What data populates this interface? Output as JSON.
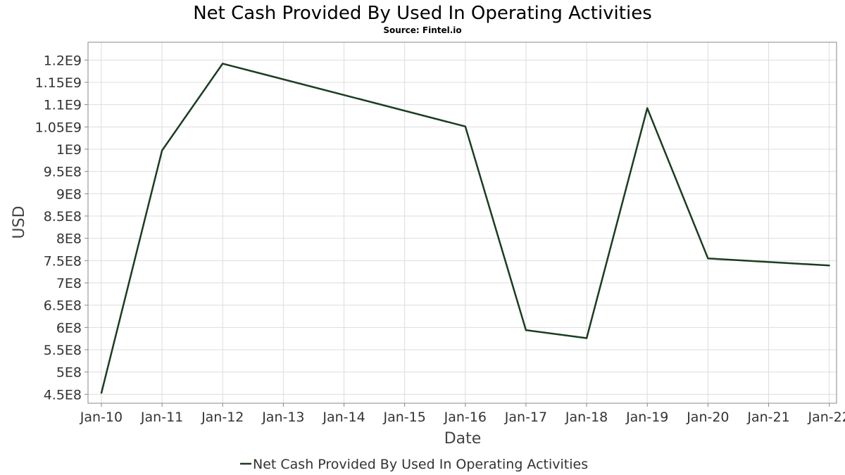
{
  "chart_data": {
    "type": "line",
    "title": "Net Cash Provided By Used In Operating Activities",
    "subtitle": "Source: Fintel.io",
    "xlabel": "Date",
    "ylabel": "USD",
    "x_ticks": [
      "Jan-10",
      "Jan-11",
      "Jan-12",
      "Jan-13",
      "Jan-14",
      "Jan-15",
      "Jan-16",
      "Jan-17",
      "Jan-18",
      "Jan-19",
      "Jan-20",
      "Jan-21",
      "Jan-22"
    ],
    "y_ticks": [
      "4.5E8",
      "5E8",
      "5.5E8",
      "6E8",
      "6.5E8",
      "7E8",
      "7.5E8",
      "8E8",
      "8.5E8",
      "9E8",
      "9.5E8",
      "1E9",
      "1.05E9",
      "1.1E9",
      "1.15E9",
      "1.2E9"
    ],
    "ylim": [
      430000000,
      1240000000
    ],
    "xlim": [
      2009.78,
      2022.12
    ],
    "grid": true,
    "legend_position": "bottom-center",
    "series": [
      {
        "name": "Net Cash Provided By Used In Operating Activities",
        "color": "#1a3d20",
        "x": [
          2010,
          2011,
          2012,
          2016,
          2017,
          2018,
          2019,
          2020,
          2022
        ],
        "values": [
          453000000,
          997000000,
          1192000000,
          1051000000,
          594000000,
          576000000,
          1092000000,
          755000000,
          739000000
        ]
      }
    ]
  }
}
